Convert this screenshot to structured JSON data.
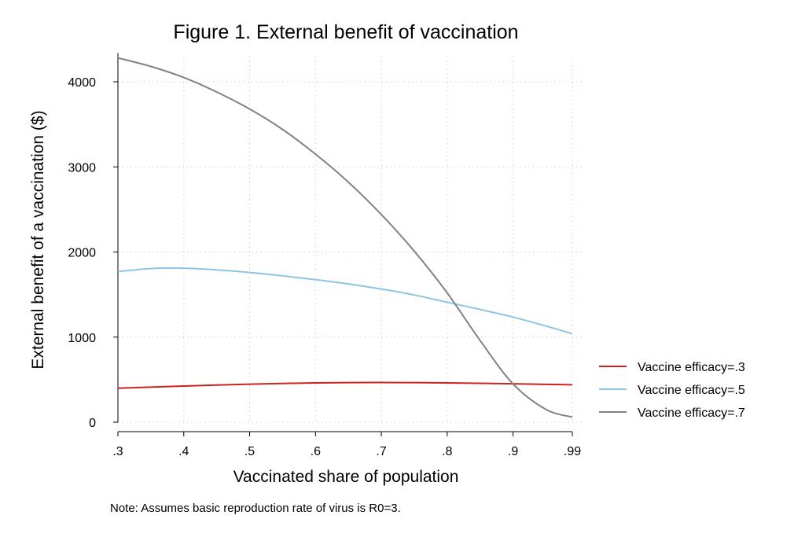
{
  "chart_data": {
    "type": "line",
    "title": "Figure 1. External benefit of vaccination",
    "xlabel": "Vaccinated share of population",
    "ylabel": "External benefit of a vaccination ($)",
    "note": "Note: Assumes basic reproduction rate of virus is R0=3.",
    "xlim": [
      0.3,
      0.99
    ],
    "ylim": [
      0,
      4300
    ],
    "x_ticks": [
      {
        "value": 0.3,
        "label": ".3"
      },
      {
        "value": 0.4,
        "label": ".4"
      },
      {
        "value": 0.5,
        "label": ".5"
      },
      {
        "value": 0.6,
        "label": ".6"
      },
      {
        "value": 0.7,
        "label": ".7"
      },
      {
        "value": 0.8,
        "label": ".8"
      },
      {
        "value": 0.9,
        "label": ".9"
      },
      {
        "value": 0.99,
        "label": ".99"
      }
    ],
    "y_ticks": [
      {
        "value": 0,
        "label": "0"
      },
      {
        "value": 1000,
        "label": "1000"
      },
      {
        "value": 2000,
        "label": "2000"
      },
      {
        "value": 3000,
        "label": "3000"
      },
      {
        "value": 4000,
        "label": "4000"
      }
    ],
    "grid": true,
    "legend_position": "right",
    "x": [
      0.3,
      0.35,
      0.4,
      0.45,
      0.5,
      0.55,
      0.6,
      0.65,
      0.7,
      0.75,
      0.8,
      0.85,
      0.9,
      0.95,
      0.99
    ],
    "series": [
      {
        "name": "Vaccine efficacy=.3",
        "color": "#cc2222",
        "values": [
          400,
          412,
          425,
          437,
          447,
          455,
          462,
          465,
          466,
          465,
          462,
          457,
          451,
          445,
          440
        ]
      },
      {
        "name": "Vaccine efficacy=.5",
        "color": "#8ec5e6",
        "values": [
          1770,
          1805,
          1810,
          1790,
          1760,
          1720,
          1675,
          1625,
          1565,
          1495,
          1410,
          1325,
          1235,
          1130,
          1040
        ]
      },
      {
        "name": "Vaccine efficacy=.7",
        "color": "#828282",
        "values": [
          4280,
          4180,
          4050,
          3880,
          3680,
          3440,
          3150,
          2820,
          2440,
          2010,
          1520,
          960,
          450,
          150,
          60
        ]
      }
    ]
  }
}
